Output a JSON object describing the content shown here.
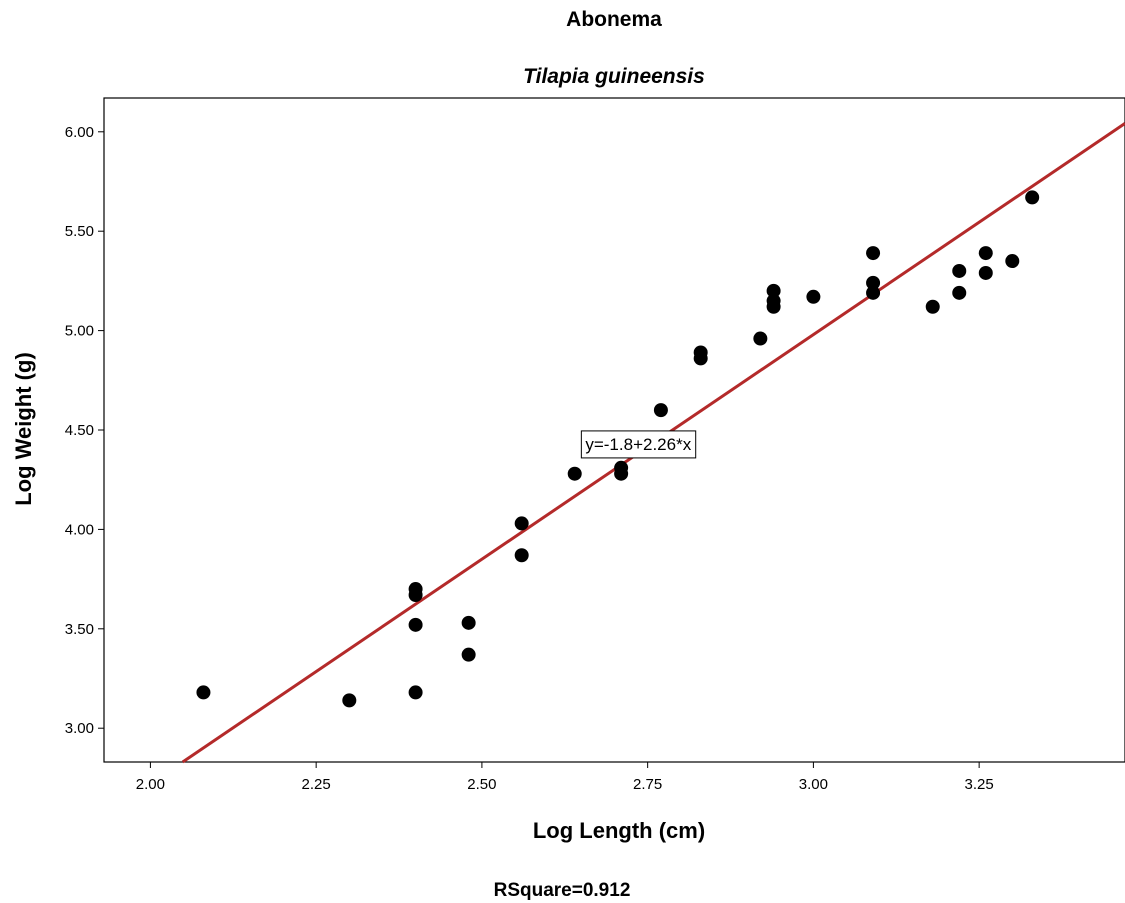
{
  "chart_data": {
    "type": "scatter",
    "title": "Abonema",
    "subtitle": "Tilapia guineensis",
    "xlabel": "Log Length (cm)",
    "ylabel": "Log Weight (g)",
    "xlim": [
      1.93,
      3.47
    ],
    "ylim": [
      2.83,
      6.17
    ],
    "x_ticks": [
      2.0,
      2.25,
      2.5,
      2.75,
      3.0,
      3.25
    ],
    "x_tick_labels": [
      "2.00",
      "2.25",
      "2.50",
      "2.75",
      "3.00",
      "3.25"
    ],
    "y_ticks": [
      3.0,
      3.5,
      4.0,
      4.5,
      5.0,
      5.5,
      6.0
    ],
    "y_tick_labels": [
      "3.00",
      "3.50",
      "4.00",
      "4.50",
      "5.00",
      "5.50",
      "6.00"
    ],
    "grid": false,
    "points": [
      {
        "x": 2.08,
        "y": 3.18
      },
      {
        "x": 2.3,
        "y": 3.14
      },
      {
        "x": 2.4,
        "y": 3.18
      },
      {
        "x": 2.4,
        "y": 3.52
      },
      {
        "x": 2.4,
        "y": 3.67
      },
      {
        "x": 2.4,
        "y": 3.7
      },
      {
        "x": 2.48,
        "y": 3.37
      },
      {
        "x": 2.48,
        "y": 3.53
      },
      {
        "x": 2.56,
        "y": 3.87
      },
      {
        "x": 2.56,
        "y": 4.03
      },
      {
        "x": 2.64,
        "y": 4.28
      },
      {
        "x": 2.71,
        "y": 4.28
      },
      {
        "x": 2.71,
        "y": 4.31
      },
      {
        "x": 2.77,
        "y": 4.6
      },
      {
        "x": 2.83,
        "y": 4.86
      },
      {
        "x": 2.83,
        "y": 4.89
      },
      {
        "x": 2.92,
        "y": 4.96
      },
      {
        "x": 2.94,
        "y": 5.12
      },
      {
        "x": 2.94,
        "y": 5.15
      },
      {
        "x": 2.94,
        "y": 5.2
      },
      {
        "x": 3.0,
        "y": 5.17
      },
      {
        "x": 3.09,
        "y": 5.19
      },
      {
        "x": 3.09,
        "y": 5.24
      },
      {
        "x": 3.09,
        "y": 5.39
      },
      {
        "x": 3.18,
        "y": 5.12
      },
      {
        "x": 3.22,
        "y": 5.19
      },
      {
        "x": 3.22,
        "y": 5.3
      },
      {
        "x": 3.26,
        "y": 5.29
      },
      {
        "x": 3.26,
        "y": 5.39
      },
      {
        "x": 3.3,
        "y": 5.35
      },
      {
        "x": 3.33,
        "y": 5.67
      }
    ],
    "fit_line": {
      "intercept": -1.8,
      "slope": 2.26,
      "color": "#b42a2a",
      "equation_label": "y=-1.8+2.26*x",
      "equation_anchor": {
        "x": 2.65,
        "y": 4.43
      }
    },
    "point_color": "#000000",
    "footer": "RSquare=0.912"
  }
}
